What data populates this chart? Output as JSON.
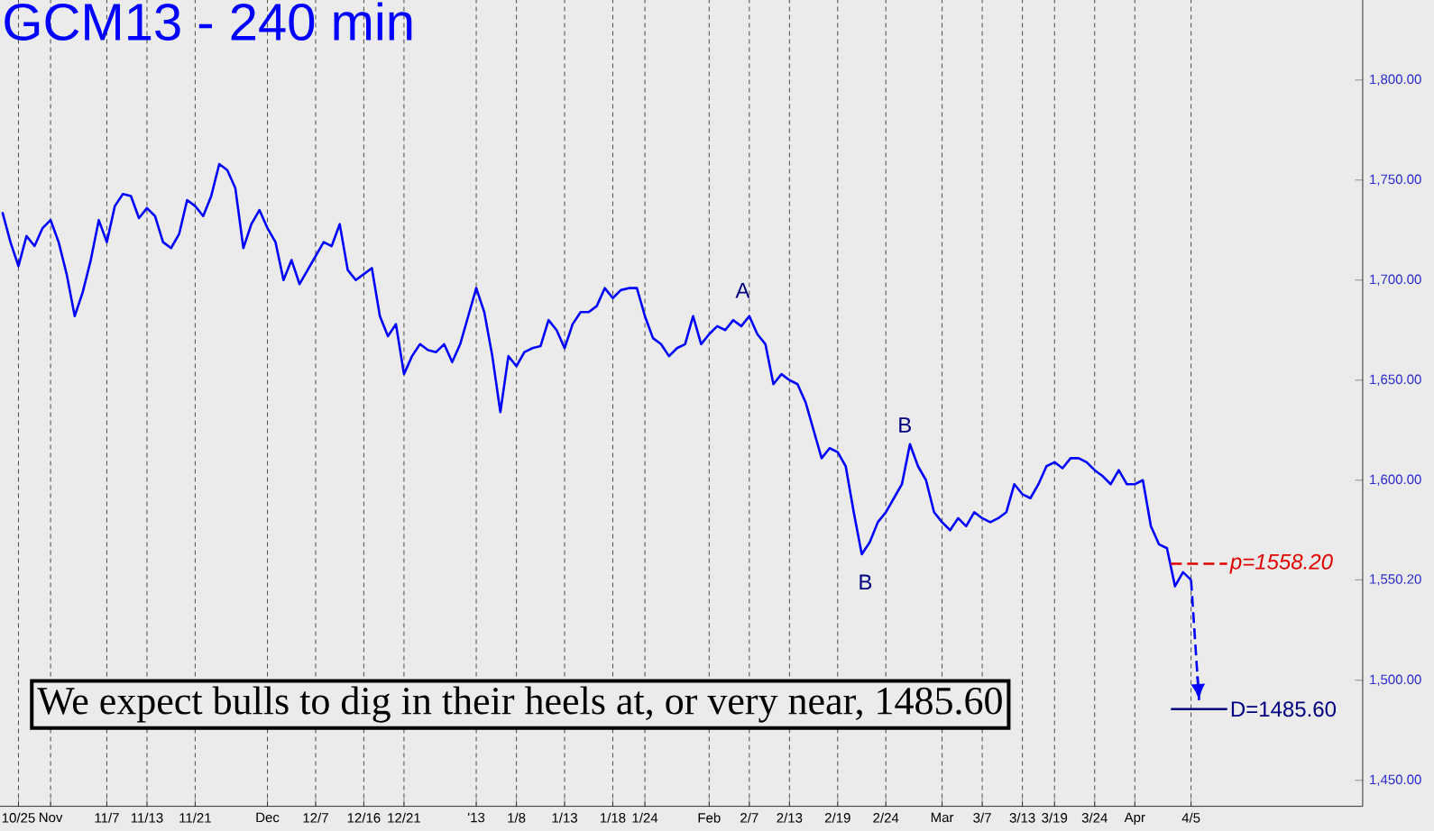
{
  "chart_data": {
    "type": "line",
    "title": "GCM13 - 240 min",
    "categories": [
      null,
      null,
      "10/25",
      null,
      null,
      null,
      "Nov",
      null,
      null,
      null,
      null,
      null,
      null,
      "11/7",
      null,
      null,
      null,
      null,
      "11/13",
      null,
      null,
      null,
      null,
      null,
      "11/21",
      null,
      null,
      null,
      null,
      null,
      null,
      null,
      null,
      "Dec",
      null,
      null,
      null,
      null,
      null,
      "12/7",
      null,
      null,
      null,
      null,
      null,
      "12/16",
      null,
      null,
      null,
      null,
      "12/21",
      null,
      null,
      null,
      null,
      null,
      null,
      null,
      null,
      "'13",
      null,
      null,
      null,
      null,
      "1/8",
      null,
      null,
      null,
      null,
      null,
      "1/13",
      null,
      null,
      null,
      null,
      null,
      "1/18",
      null,
      null,
      null,
      "1/24",
      null,
      null,
      null,
      null,
      null,
      null,
      null,
      "Feb",
      null,
      null,
      null,
      null,
      "2/7",
      null,
      null,
      null,
      null,
      "2/13",
      null,
      null,
      null,
      null,
      null,
      "2/19",
      null,
      null,
      null,
      null,
      null,
      "2/24",
      null,
      null,
      null,
      null,
      null,
      null,
      "Mar",
      null,
      null,
      null,
      null,
      "3/7",
      null,
      null,
      null,
      null,
      "3/13",
      null,
      null,
      null,
      "3/19",
      null,
      null,
      null,
      null,
      "3/24",
      null,
      null,
      null,
      null,
      "Apr",
      null,
      null,
      null,
      null,
      null,
      null,
      "4/5",
      null
    ],
    "series": [
      {
        "color": "#0000ff",
        "line_style": "solid",
        "values": [
          1734,
          1719,
          1707,
          1722,
          1717,
          1726,
          1730,
          1719,
          1703,
          1682,
          1694,
          1710,
          1730,
          1719,
          1737,
          1743,
          1742,
          1731,
          1736,
          1732,
          1719,
          1716,
          1723,
          1740,
          1737,
          1732,
          1742,
          1758,
          1755,
          1746,
          1716,
          1728,
          1735,
          1726,
          1719,
          1700,
          1710,
          1698,
          1705,
          1712,
          1719,
          1717,
          1728,
          1705,
          1700,
          1703,
          1706,
          1682,
          1672,
          1678,
          1653,
          1662,
          1668,
          1665,
          1664,
          1668,
          1659,
          1668,
          1682,
          1696,
          1684,
          1662,
          1634,
          1662,
          1657,
          1664,
          1666,
          1667,
          1680,
          1675,
          1666,
          1678,
          1684,
          1684,
          1687,
          1696,
          1691,
          1695,
          1696,
          1696,
          1682,
          1671,
          1668,
          1662,
          1666,
          1668,
          1682,
          1668,
          1673,
          1677,
          1675,
          1680,
          1677,
          1682,
          1673,
          1668,
          1648,
          1653,
          1650,
          1648,
          1639,
          1625,
          1611,
          1616,
          1614,
          1607,
          1584,
          1563,
          1569,
          1579,
          1584,
          1591,
          1598,
          1618,
          1607,
          1600,
          1584,
          1579,
          1575,
          1581,
          1577,
          1584,
          1581,
          1579,
          1581,
          1584,
          1598,
          1593,
          1591,
          1598,
          1607,
          1609,
          1606,
          1611,
          1611,
          1609,
          1605,
          1602,
          1598,
          1605,
          1598,
          1598,
          1600,
          1577,
          1568,
          1566,
          1547,
          1554,
          1550.2,
          null
        ]
      },
      {
        "color": "#0000ff",
        "line_style": "dashed",
        "values": [
          null,
          null,
          null,
          null,
          null,
          null,
          null,
          null,
          null,
          null,
          null,
          null,
          null,
          null,
          null,
          null,
          null,
          null,
          null,
          null,
          null,
          null,
          null,
          null,
          null,
          null,
          null,
          null,
          null,
          null,
          null,
          null,
          null,
          null,
          null,
          null,
          null,
          null,
          null,
          null,
          null,
          null,
          null,
          null,
          null,
          null,
          null,
          null,
          null,
          null,
          null,
          null,
          null,
          null,
          null,
          null,
          null,
          null,
          null,
          null,
          null,
          null,
          null,
          null,
          null,
          null,
          null,
          null,
          null,
          null,
          null,
          null,
          null,
          null,
          null,
          null,
          null,
          null,
          null,
          null,
          null,
          null,
          null,
          null,
          null,
          null,
          null,
          null,
          null,
          null,
          null,
          null,
          null,
          null,
          null,
          null,
          null,
          null,
          null,
          null,
          null,
          null,
          null,
          null,
          null,
          null,
          null,
          null,
          null,
          null,
          null,
          null,
          null,
          null,
          null,
          null,
          null,
          null,
          null,
          null,
          null,
          null,
          null,
          null,
          null,
          null,
          null,
          null,
          null,
          null,
          null,
          null,
          null,
          null,
          null,
          null,
          null,
          null,
          null,
          null,
          null,
          null,
          null,
          null,
          null,
          null,
          null,
          null,
          1550.2,
          1490
        ]
      }
    ],
    "ylim": [
      1437,
      1840
    ],
    "yticks": [
      {
        "value": 1450,
        "label": "1,450.00"
      },
      {
        "value": 1500,
        "label": "1,500.00"
      },
      {
        "value": 1550.2,
        "label": "1,550.20"
      },
      {
        "value": 1600,
        "label": "1,600.00"
      },
      {
        "value": 1650,
        "label": "1,650.00"
      },
      {
        "value": 1700,
        "label": "1,700.00"
      },
      {
        "value": 1750,
        "label": "1,750.00"
      },
      {
        "value": 1800,
        "label": "1,800.00"
      }
    ],
    "grid": "x",
    "marker": "none",
    "ref_lines": [
      {
        "axis": "y",
        "value": 1558.2,
        "label": "p=1558.20",
        "color": "#e00000",
        "line_style": "dashed"
      },
      {
        "axis": "y",
        "value": 1485.6,
        "label": "D=1485.60",
        "color": "#000080",
        "line_style": "solid"
      }
    ],
    "annotations": [
      "A",
      "B",
      "B",
      "We expect bulls to dig in their heels at, or very near, 1485.60"
    ]
  }
}
